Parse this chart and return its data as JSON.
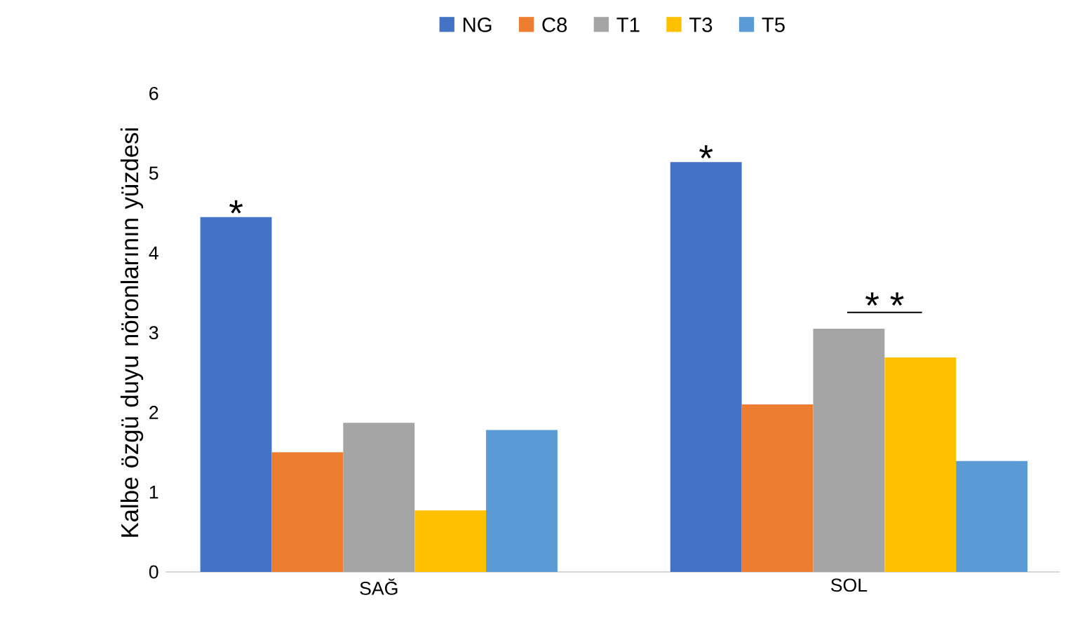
{
  "chart_data": {
    "type": "bar",
    "ylabel": "Kalbe özgü duyu nöronlarının yüzdesi",
    "categories": [
      "SAĞ",
      "SOL"
    ],
    "series": [
      {
        "name": "NG",
        "color": "#4472c4",
        "values": [
          4.45,
          5.14
        ]
      },
      {
        "name": "C8",
        "color": "#ed7d31",
        "values": [
          1.5,
          2.1
        ]
      },
      {
        "name": "T1",
        "color": "#a5a5a5",
        "values": [
          1.87,
          3.05
        ]
      },
      {
        "name": "T3",
        "color": "#ffc000",
        "values": [
          0.77,
          2.69
        ]
      },
      {
        "name": "T5",
        "color": "#5b9bd5",
        "values": [
          1.78,
          1.39
        ]
      }
    ],
    "ylim": [
      0,
      6
    ],
    "yticks": [
      0,
      1,
      2,
      3,
      4,
      5,
      6
    ],
    "legend": "top",
    "annotations": [
      "*",
      "*",
      "* *"
    ]
  }
}
